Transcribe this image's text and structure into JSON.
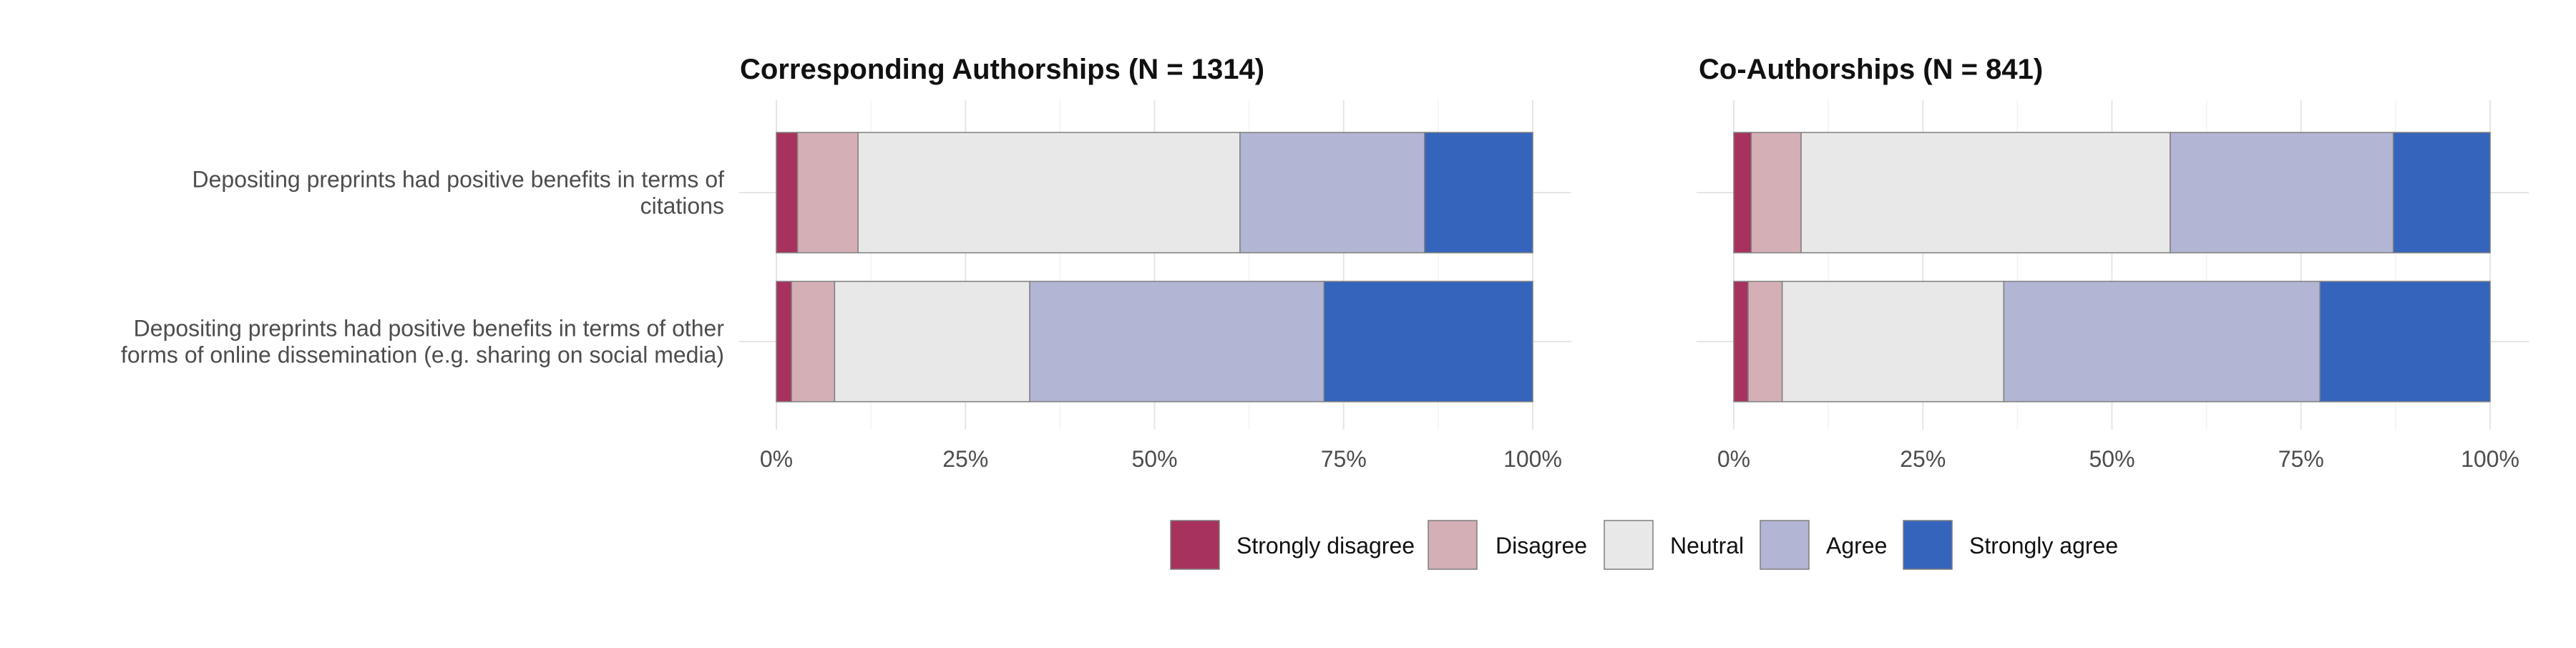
{
  "chart_data": {
    "type": "bar",
    "orientation": "horizontal",
    "stacked": true,
    "percent_scale": true,
    "categories": [
      "Depositing preprints had positive benefits in terms of citations",
      "Depositing preprints had positive benefits in terms of other forms of online dissemination (e.g. sharing on social media)"
    ],
    "category_lines": [
      [
        "Depositing preprints had positive benefits in terms of",
        "citations"
      ],
      [
        "Depositing preprints had positive benefits in terms of other",
        "forms of online dissemination (e.g. sharing on social media)"
      ]
    ],
    "xlim": [
      0,
      100
    ],
    "x_ticks": [
      0,
      25,
      50,
      75,
      100
    ],
    "x_tick_labels": [
      "0%",
      "25%",
      "50%",
      "75%",
      "100%"
    ],
    "grid": true,
    "legend_position": "bottom",
    "legend": [
      {
        "name": "Strongly disagree",
        "color": "#A8325E"
      },
      {
        "name": "Disagree",
        "color": "#D5AFB6"
      },
      {
        "name": "Neutral",
        "color": "#E8E8E8"
      },
      {
        "name": "Agree",
        "color": "#B2B5D3"
      },
      {
        "name": "Strongly agree",
        "color": "#3464BC"
      }
    ],
    "panels": [
      {
        "title": "Corresponding Authorships (N = 1314)",
        "series": [
          {
            "name": "Strongly disagree",
            "values": [
              2.8,
              2.0
            ]
          },
          {
            "name": "Disagree",
            "values": [
              8.0,
              5.7
            ]
          },
          {
            "name": "Neutral",
            "values": [
              50.5,
              25.8
            ]
          },
          {
            "name": "Agree",
            "values": [
              24.4,
              38.9
            ]
          },
          {
            "name": "Strongly agree",
            "values": [
              14.3,
              27.6
            ]
          }
        ]
      },
      {
        "title": "Co-Authorships (N = 841)",
        "series": [
          {
            "name": "Strongly disagree",
            "values": [
              2.3,
              1.9
            ]
          },
          {
            "name": "Disagree",
            "values": [
              6.6,
              4.5
            ]
          },
          {
            "name": "Neutral",
            "values": [
              48.8,
              29.3
            ]
          },
          {
            "name": "Agree",
            "values": [
              29.5,
              41.8
            ]
          },
          {
            "name": "Strongly agree",
            "values": [
              12.8,
              22.5
            ]
          }
        ]
      }
    ]
  }
}
